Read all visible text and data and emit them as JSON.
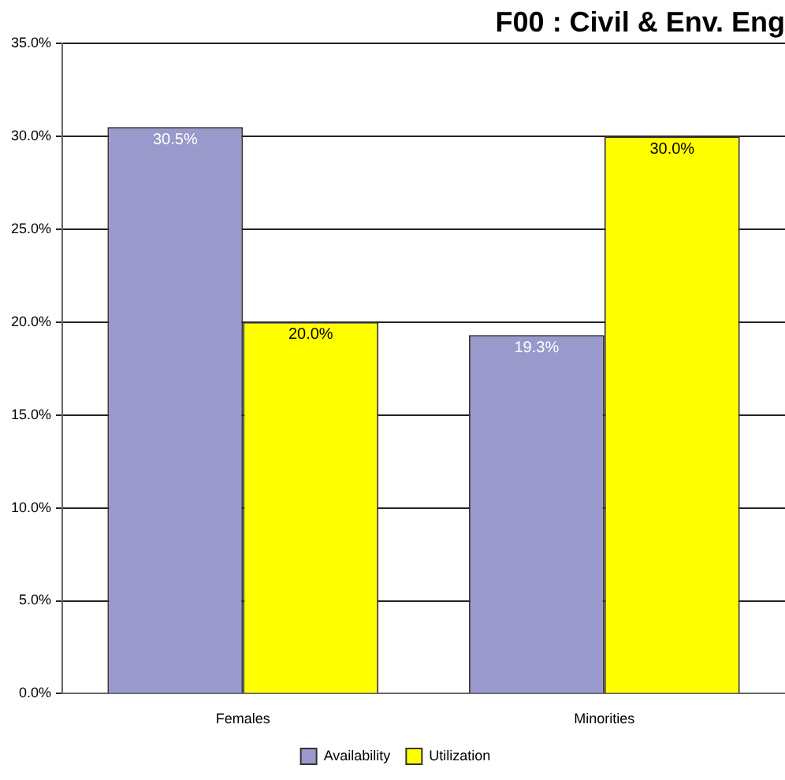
{
  "chart_data": {
    "type": "bar",
    "title": "F00 : Civil & Env. Eng",
    "categories": [
      "Females",
      "Minorities"
    ],
    "series": [
      {
        "name": "Availability",
        "color": "#9999cc",
        "values": [
          30.5,
          19.3
        ]
      },
      {
        "name": "Utilization",
        "color": "#ffff00",
        "values": [
          20.0,
          30.0
        ]
      }
    ],
    "ylim": [
      0,
      35
    ],
    "yticks": [
      {
        "value": 0,
        "label": "0.0%"
      },
      {
        "value": 5,
        "label": "5.0%"
      },
      {
        "value": 10,
        "label": "10.0%"
      },
      {
        "value": 15,
        "label": "15.0%"
      },
      {
        "value": 20,
        "label": "20.0%"
      },
      {
        "value": 25,
        "label": "25.0%"
      },
      {
        "value": 30,
        "label": "30.0%"
      },
      {
        "value": 35,
        "label": "35.0%"
      }
    ],
    "value_labels": [
      "30.5%",
      "19.3%",
      "20.0%",
      "30.0%"
    ],
    "grid": "y",
    "legend": "bottom"
  }
}
